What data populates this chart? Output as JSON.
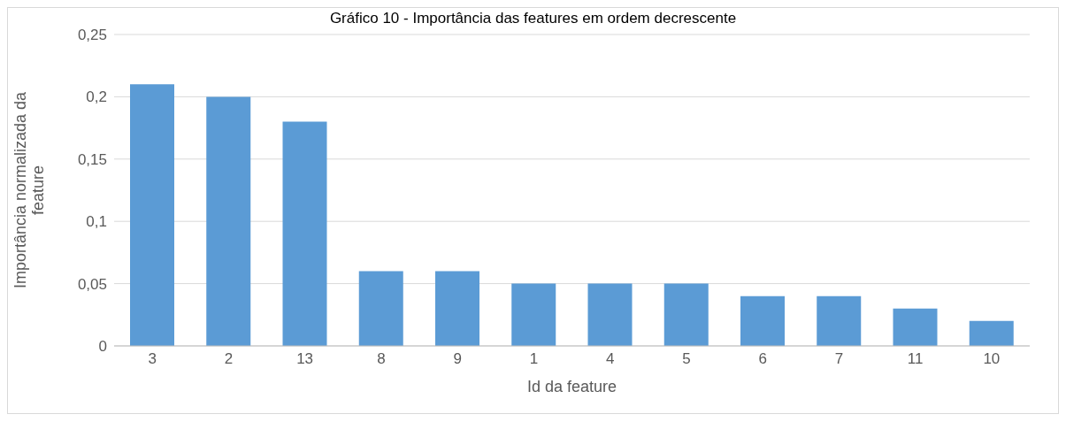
{
  "chart_data": {
    "type": "bar",
    "title": "Gráfico 10 - Importância das features em ordem decrescente",
    "xlabel": "Id da feature",
    "ylabel": "Importância normalizada da feature",
    "categories": [
      "3",
      "2",
      "13",
      "8",
      "9",
      "1",
      "4",
      "5",
      "6",
      "7",
      "11",
      "10"
    ],
    "values": [
      0.21,
      0.2,
      0.18,
      0.06,
      0.06,
      0.05,
      0.05,
      0.05,
      0.04,
      0.04,
      0.03,
      0.02
    ],
    "color": "#5b9bd5",
    "ylim": [
      0,
      0.25
    ],
    "yticks": [
      {
        "value": 0,
        "label": "0"
      },
      {
        "value": 0.05,
        "label": "0,05"
      },
      {
        "value": 0.1,
        "label": "0,1"
      },
      {
        "value": 0.15,
        "label": "0,15"
      },
      {
        "value": 0.2,
        "label": "0,2"
      },
      {
        "value": 0.25,
        "label": "0,25"
      }
    ],
    "grid": "y"
  }
}
